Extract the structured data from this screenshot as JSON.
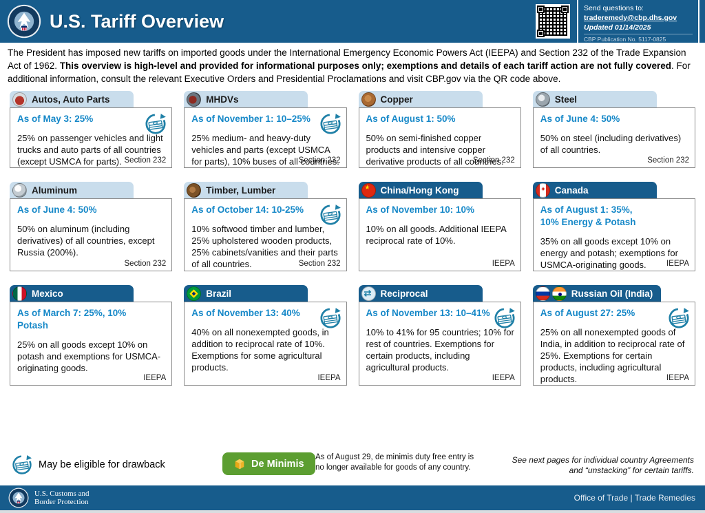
{
  "header": {
    "title": "U.S. Tariff Overview",
    "contact": {
      "line1": "Send questions to:",
      "email": "traderemedy@cbp.dhs.gov",
      "updated": "Updated 01/14/2025",
      "publication": "CBP Publication No. 5117-0825"
    }
  },
  "intro": {
    "part1": "The President has imposed new tariffs on imported goods under the International Emergency Economic Powers Act (IEEPA) and Section 232 of the Trade Expansion Act of 1962. ",
    "bold": "This overview is high-level and provided for informational purposes only; exemptions and details of each tariff action are not fully covered",
    "part2": ". For additional information, consult the relevant Executive Orders and Presidential Proclamations and visit CBP.gov via the QR code above."
  },
  "cards": [
    {
      "title": "Autos, Auto Parts",
      "variant": "light",
      "icons": [
        "car-icon"
      ],
      "headline": "As of May 3: 25%",
      "drawback": true,
      "body": "25% on passenger vehicles and light trucks and auto parts of all countries (except USMCA for parts).",
      "authority": "Section 232"
    },
    {
      "title": "MHDVs",
      "variant": "light",
      "icons": [
        "truck-icon"
      ],
      "headline": "As of November 1: 10–25%",
      "drawback": true,
      "body": "25% medium- and heavy-duty vehicles and parts (except USMCA for parts), 10% buses of all countries.",
      "authority": "Section 232"
    },
    {
      "title": "Copper",
      "variant": "light",
      "icons": [
        "copper-icon"
      ],
      "headline": "As of August 1: 50%",
      "drawback": false,
      "body": "50% on semi-finished copper products and intensive copper derivative products of all countries.",
      "authority": "Section 232"
    },
    {
      "title": "Steel",
      "variant": "light",
      "icons": [
        "steel-icon"
      ],
      "headline": "As of June 4: 50%",
      "drawback": false,
      "body": "50% on steel (including derivatives) of all countries.",
      "authority": "Section 232"
    },
    {
      "title": "Aluminum",
      "variant": "light",
      "icons": [
        "aluminum-icon"
      ],
      "headline": "As of June 4: 50%",
      "drawback": false,
      "body": "50% on aluminum (including derivatives) of all countries, except Russia (200%).",
      "authority": "Section 232"
    },
    {
      "title": "Timber, Lumber",
      "variant": "light",
      "icons": [
        "timber-icon"
      ],
      "headline": "As of October 14: 10-25%",
      "drawback": true,
      "body": "10% softwood timber and lumber, 25% upholstered wooden products, 25% cabinets/vanities and their parts of all countries.",
      "authority": "Section 232"
    },
    {
      "title": "China/Hong Kong",
      "variant": "dark",
      "icons": [
        "china-flag-icon"
      ],
      "headline": "As of November 10: 10%",
      "drawback": false,
      "body": "10% on all goods. Additional IEEPA reciprocal rate of 10%.",
      "authority": "IEEPA"
    },
    {
      "title": "Canada",
      "variant": "dark",
      "icons": [
        "canada-flag-icon"
      ],
      "headline": "As of August 1: 35%,\n10% Energy & Potash",
      "drawback": false,
      "body": "35% on all goods except 10% on energy and potash; exemptions for USMCA-originating goods.",
      "authority": "IEEPA"
    },
    {
      "title": "Mexico",
      "variant": "dark",
      "icons": [
        "mexico-flag-icon"
      ],
      "headline": "As of March 7: 25%, 10% Potash",
      "drawback": false,
      "body": "25% on all goods except 10% on potash and exemptions for USMCA-originating goods.",
      "authority": "IEEPA"
    },
    {
      "title": "Brazil",
      "variant": "dark",
      "icons": [
        "brazil-flag-icon"
      ],
      "headline": "As of November 13: 40%",
      "drawback": true,
      "body": "40% on all nonexempted goods, in addition to reciprocal rate of 10%. Exemptions for some agricultural products.",
      "authority": "IEEPA"
    },
    {
      "title": "Reciprocal",
      "variant": "dark",
      "icons": [
        "reciprocal-globe-icon"
      ],
      "headline": "As of November 13: 10–41%",
      "drawback": true,
      "body": "10% to 41% for 95 countries; 10% for rest of countries. Exemptions for certain products, including agricultural products.",
      "authority": "IEEPA"
    },
    {
      "title": "Russian Oil (India)",
      "variant": "dark",
      "icons": [
        "russia-flag-icon",
        "india-flag-icon"
      ],
      "headline": "As of August 27: 25%",
      "drawback": true,
      "body": "25% on all nonexempted goods of India, in addition to reciprocal rate of 25%. Exemptions for certain products, including agricultural products.",
      "authority": "IEEPA"
    }
  ],
  "legend": {
    "drawback_label": "May be eligible for drawback",
    "de_minimis_label": "De Minimis",
    "de_minimis_note": "As of August 29, de minimis duty free entry is no longer available for goods of any country.",
    "side_note": "See next pages for individual country Agreements and “unstacking” for certain tariffs."
  },
  "footer": {
    "agency_line1": "U.S. Customs and",
    "agency_line2": "Border Protection",
    "right": "Office of Trade | Trade Remedies"
  }
}
